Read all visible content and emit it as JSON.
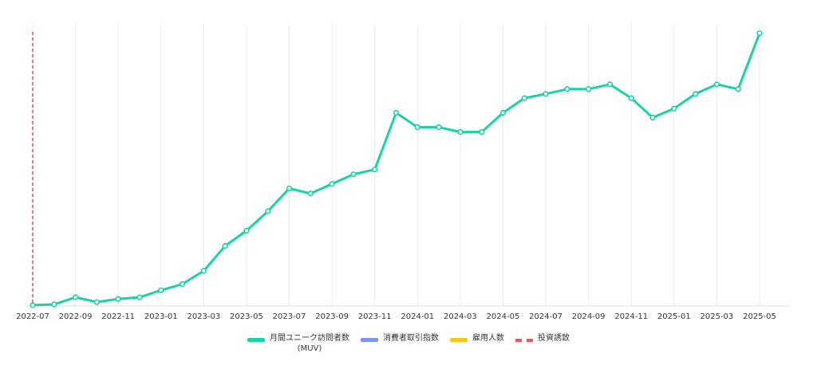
{
  "chart_data": {
    "type": "line",
    "title": "",
    "xlabel": "",
    "ylabel": "",
    "grid": "vertical",
    "x": [
      "2022-07",
      "2022-08",
      "2022-09",
      "2022-10",
      "2022-11",
      "2022-12",
      "2023-01",
      "2023-02",
      "2023-03",
      "2023-04",
      "2023-05",
      "2023-06",
      "2023-07",
      "2023-08",
      "2023-09",
      "2023-10",
      "2023-11",
      "2023-12",
      "2024-01",
      "2024-02",
      "2024-03",
      "2024-04",
      "2024-05",
      "2024-06",
      "2024-07",
      "2024-08",
      "2024-09",
      "2024-10",
      "2024-11",
      "2024-12",
      "2025-01",
      "2025-02",
      "2025-03",
      "2025-04",
      "2025-05"
    ],
    "x_tick_labels": [
      "2022-07",
      "2022-09",
      "2022-11",
      "2023-01",
      "2023-03",
      "2023-05",
      "2023-07",
      "2023-09",
      "2023-11",
      "2024-01",
      "2024-03",
      "2024-05",
      "2024-07",
      "2024-09",
      "2024-11",
      "2025-01",
      "2025-03",
      "2025-05"
    ],
    "ylim": [
      0,
      100
    ],
    "y_ticks_visible": false,
    "series": [
      {
        "name": "月間ユニーク訪問者数\n(MUV)",
        "color": "#19d3a2",
        "values": [
          0.3,
          0.6,
          3.1,
          1.4,
          2.5,
          3.1,
          5.6,
          7.8,
          12.5,
          21.3,
          26.7,
          33.6,
          41.7,
          39.9,
          43.3,
          46.7,
          48.4,
          68.5,
          63.4,
          63.4,
          61.7,
          61.7,
          68.5,
          73.7,
          75.2,
          76.9,
          76.9,
          78.6,
          73.7,
          66.8,
          70.0,
          75.2,
          78.6,
          76.9,
          96.7
        ]
      }
    ],
    "events": [
      {
        "name": "投資誘致",
        "x": "2022-07",
        "color": "#f05a5a",
        "style": "dashed"
      }
    ],
    "legend": {
      "placement": "bottom",
      "items": [
        {
          "label": "月間ユニーク訪問者数\n(MUV)",
          "color": "#19d3a2",
          "style": "solid"
        },
        {
          "label": "消費者取引指数",
          "color": "#7b93f5",
          "style": "solid"
        },
        {
          "label": "雇用人数",
          "color": "#f5c518",
          "style": "solid"
        },
        {
          "label": "投資誘致",
          "color": "#f05a5a",
          "style": "dashed"
        }
      ]
    }
  }
}
